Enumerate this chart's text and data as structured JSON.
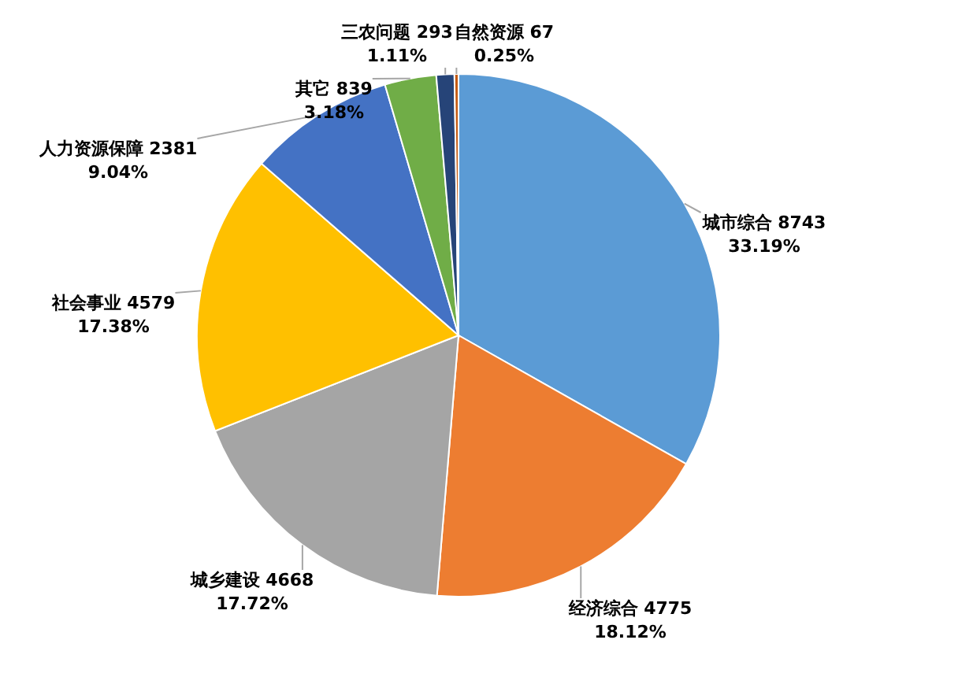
{
  "chart_data": {
    "type": "pie",
    "categories": [
      "城市综合",
      "经济综合",
      "城乡建设",
      "社会事业",
      "人力资源保障",
      "其它",
      "三农问题",
      "自然资源"
    ],
    "values": [
      33.19,
      18.12,
      17.72,
      17.38,
      9.04,
      3.18,
      1.11,
      0.25
    ],
    "colors": [
      "#5b9bd5",
      "#ed7d31",
      "#a5a5a5",
      "#ffc000",
      "#4472c4",
      "#70ad47",
      "#264478",
      "#c55a11"
    ],
    "value_labels": [
      "8743\n33.19%",
      "4775\n18.12%",
      "4668\n17.72%",
      "4579\n17.38%",
      "2381\n9.04%",
      "839\n3.18%",
      "293\n1.11%",
      "67\n0.25%"
    ]
  }
}
